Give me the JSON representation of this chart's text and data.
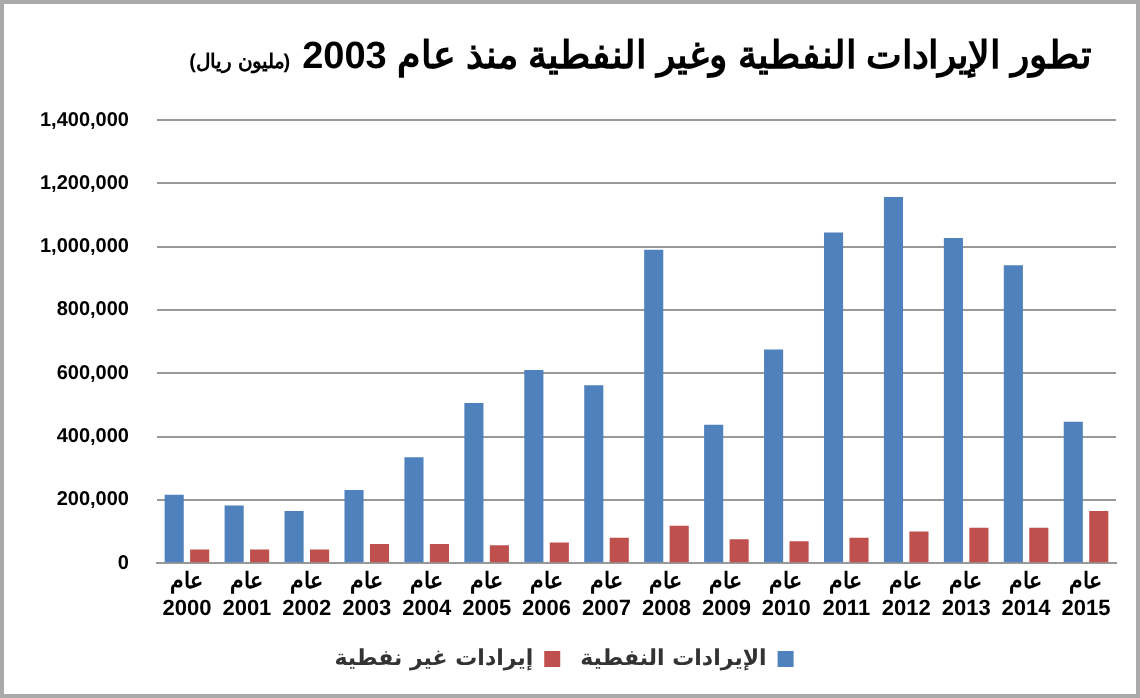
{
  "chart_data": {
    "type": "bar",
    "title": "تطور الإيرادات النفطية وغير النفطية منذ عام 2003",
    "subtitle": "(مليون ريال)",
    "categories": [
      "عام 2000",
      "عام 2001",
      "عام 2002",
      "عام 2003",
      "عام 2004",
      "عام 2005",
      "عام 2006",
      "عام 2007",
      "عام 2008",
      "عام 2009",
      "عام 2010",
      "عام 2011",
      "عام 2012",
      "عام 2013",
      "عام 2014",
      "عام 2015"
    ],
    "series": [
      {
        "name": "الإيرادات النفطية",
        "color": "#4f81bd",
        "values": [
          216000,
          182000,
          165000,
          231000,
          335000,
          506000,
          610000,
          562000,
          990000,
          437000,
          675000,
          1045000,
          1157000,
          1027000,
          941000,
          447000
        ]
      },
      {
        "name": "إيرادات غير نفطية",
        "color": "#c0504d",
        "values": [
          43000,
          43000,
          43000,
          61000,
          61000,
          57000,
          65000,
          80000,
          118000,
          76000,
          69000,
          80000,
          100000,
          112000,
          112000,
          165000
        ]
      }
    ],
    "ylim": [
      0,
      1400000
    ],
    "yticks": [
      {
        "value": 0,
        "label": "0"
      },
      {
        "value": 200000,
        "label": "200,000"
      },
      {
        "value": 400000,
        "label": "400,000"
      },
      {
        "value": 600000,
        "label": "600,000"
      },
      {
        "value": 800000,
        "label": "800,000"
      },
      {
        "value": 1000000,
        "label": "1,000,000"
      },
      {
        "value": 1200000,
        "label": "1,200,000"
      },
      {
        "value": 1400000,
        "label": "1,400,000"
      }
    ],
    "grid": "y",
    "legend": "bottom"
  }
}
